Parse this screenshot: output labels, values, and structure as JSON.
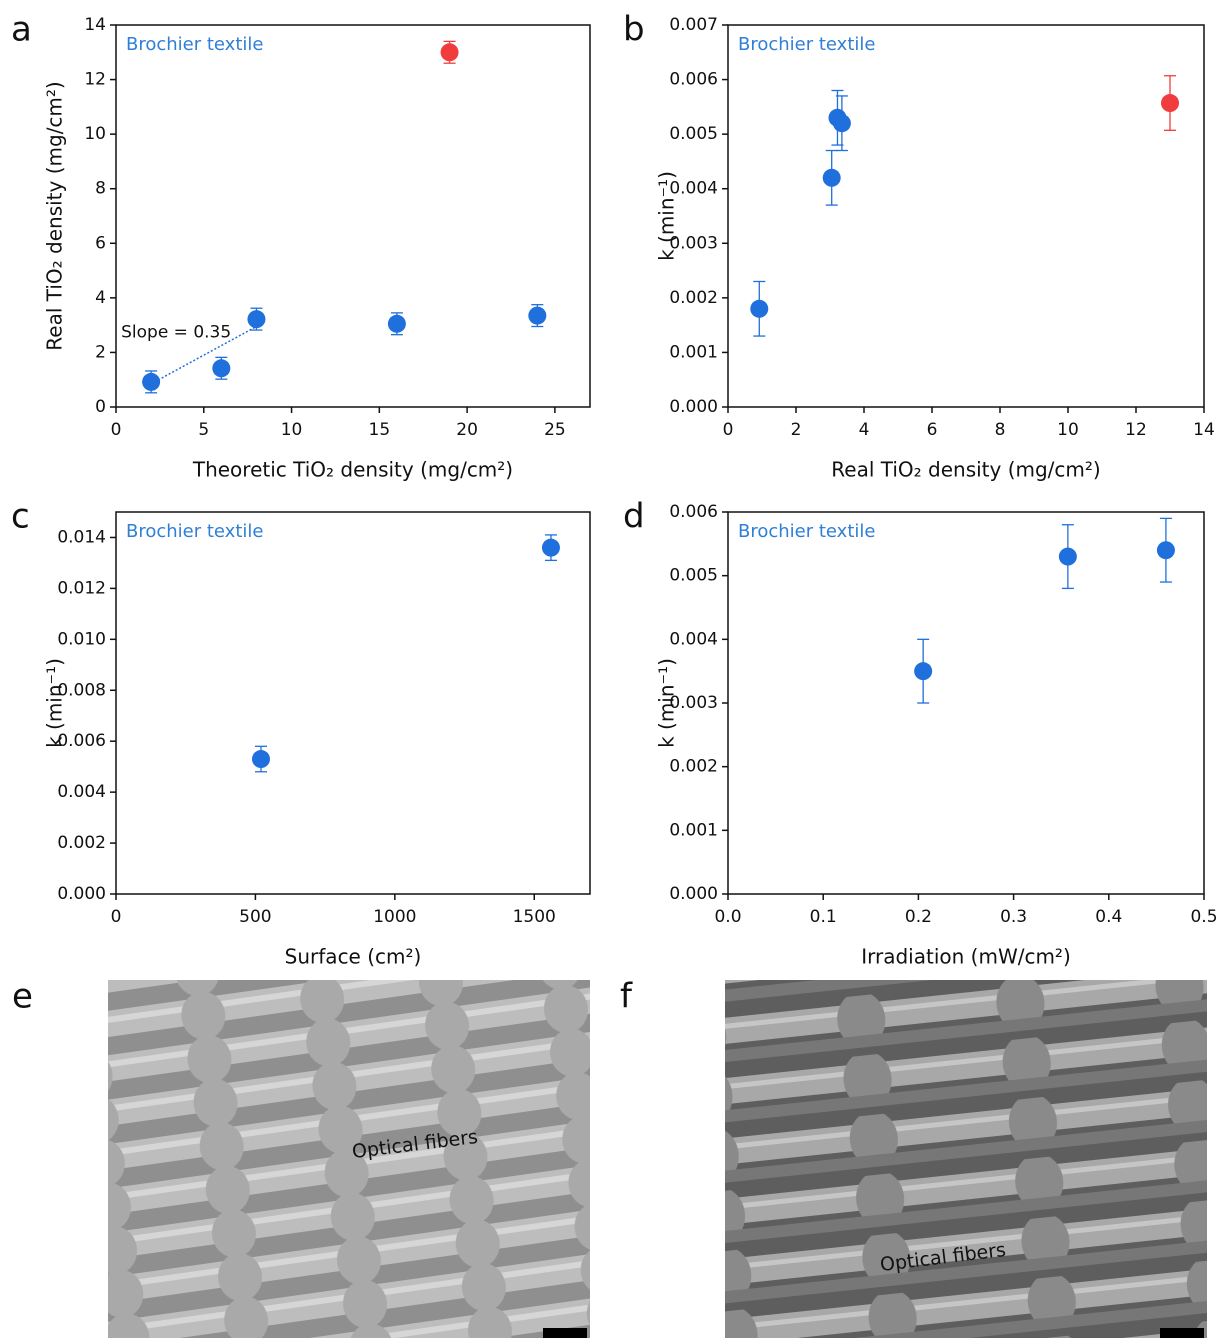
{
  "chart_data": [
    {
      "type": "scatter",
      "panel": "a",
      "annotation": "Brochier textile",
      "xlabel": "Theoretic TiO₂ density (mg/cm²)",
      "ylabel": "Real TiO₂ density (mg/cm²)",
      "xlim": [
        0,
        27
      ],
      "ylim": [
        0,
        14
      ],
      "xticks": [
        0,
        5,
        10,
        15,
        20,
        25
      ],
      "yticks": [
        0,
        2,
        4,
        6,
        8,
        10,
        12,
        14
      ],
      "series": [
        {
          "color": "#1f6fdc",
          "x": [
            2,
            6,
            8,
            16,
            24
          ],
          "values": [
            0.92,
            1.42,
            3.22,
            3.05,
            3.35
          ],
          "errors": [
            0.4,
            0.4,
            0.4,
            0.4,
            0.4
          ]
        },
        {
          "color": "#f03c3c",
          "x": [
            19
          ],
          "values": [
            13.0
          ],
          "errors": [
            0.4
          ]
        }
      ],
      "fit": {
        "color": "#1f6fdc",
        "x": [
          2,
          8
        ],
        "values": [
          0.85,
          2.95
        ],
        "label": "Slope = 0.35"
      }
    },
    {
      "type": "scatter",
      "panel": "b",
      "annotation": "Brochier textile",
      "xlabel": "Real TiO₂ density (mg/cm²)",
      "ylabel": "k (min⁻¹)",
      "xlim": [
        0,
        14
      ],
      "ylim": [
        0,
        0.007
      ],
      "xticks": [
        0,
        2,
        4,
        6,
        8,
        10,
        12,
        14
      ],
      "yticks": [
        {
          "value": 0,
          "label": "0.000"
        },
        {
          "value": 0.001,
          "label": "0.001"
        },
        {
          "value": 0.002,
          "label": "0.002"
        },
        {
          "value": 0.003,
          "label": "0.003"
        },
        {
          "value": 0.004,
          "label": "0.004"
        },
        {
          "value": 0.005,
          "label": "0.005"
        },
        {
          "value": 0.006,
          "label": "0.006"
        },
        {
          "value": 0.007,
          "label": "0.007"
        }
      ],
      "series": [
        {
          "color": "#1f6fdc",
          "x": [
            0.92,
            3.05,
            3.22,
            3.35
          ],
          "values": [
            0.0018,
            0.0042,
            0.0053,
            0.0052
          ],
          "errors": [
            0.0005,
            0.0005,
            0.0005,
            0.0005
          ]
        },
        {
          "color": "#f03c3c",
          "x": [
            13
          ],
          "values": [
            0.00557
          ],
          "errors": [
            0.0005
          ]
        }
      ]
    },
    {
      "type": "scatter",
      "panel": "c",
      "annotation": "Brochier textile",
      "xlabel": "Surface (cm²)",
      "ylabel": "k (min⁻¹)",
      "xlim": [
        0,
        1700
      ],
      "ylim": [
        0,
        0.015
      ],
      "xticks": [
        0,
        500,
        1000,
        1500
      ],
      "yticks": [
        {
          "value": 0,
          "label": "0.000"
        },
        {
          "value": 0.002,
          "label": "0.002"
        },
        {
          "value": 0.004,
          "label": "0.004"
        },
        {
          "value": 0.006,
          "label": "0.006"
        },
        {
          "value": 0.008,
          "label": "0.008"
        },
        {
          "value": 0.01,
          "label": "0.010"
        },
        {
          "value": 0.012,
          "label": "0.012"
        },
        {
          "value": 0.014,
          "label": "0.014"
        }
      ],
      "series": [
        {
          "color": "#1f6fdc",
          "x": [
            520,
            1560
          ],
          "values": [
            0.0053,
            0.0136
          ],
          "errors": [
            0.0005,
            0.0005
          ]
        }
      ]
    },
    {
      "type": "scatter",
      "panel": "d",
      "annotation": "Brochier textile",
      "xlabel": "Irradiation (mW/cm²)",
      "ylabel": "k (min⁻¹)",
      "xlim": [
        0,
        0.5
      ],
      "ylim": [
        0,
        0.006
      ],
      "xticks": [
        {
          "value": 0,
          "label": "0.0"
        },
        0.1,
        0.2,
        0.3,
        0.4,
        0.5
      ],
      "yticks": [
        {
          "value": 0,
          "label": "0.000"
        },
        {
          "value": 0.001,
          "label": "0.001"
        },
        {
          "value": 0.002,
          "label": "0.002"
        },
        {
          "value": 0.003,
          "label": "0.003"
        },
        {
          "value": 0.004,
          "label": "0.004"
        },
        {
          "value": 0.005,
          "label": "0.005"
        },
        {
          "value": 0.006,
          "label": "0.006"
        }
      ],
      "series": [
        {
          "color": "#1f6fdc",
          "x": [
            0.205,
            0.357,
            0.46
          ],
          "values": [
            0.0035,
            0.0053,
            0.0054
          ],
          "errors": [
            0.0005,
            0.0005,
            0.0005
          ]
        }
      ]
    }
  ],
  "images": [
    {
      "label": "e",
      "caption": "Optical fibers"
    },
    {
      "label": "f",
      "caption": "Optical fibers"
    }
  ]
}
